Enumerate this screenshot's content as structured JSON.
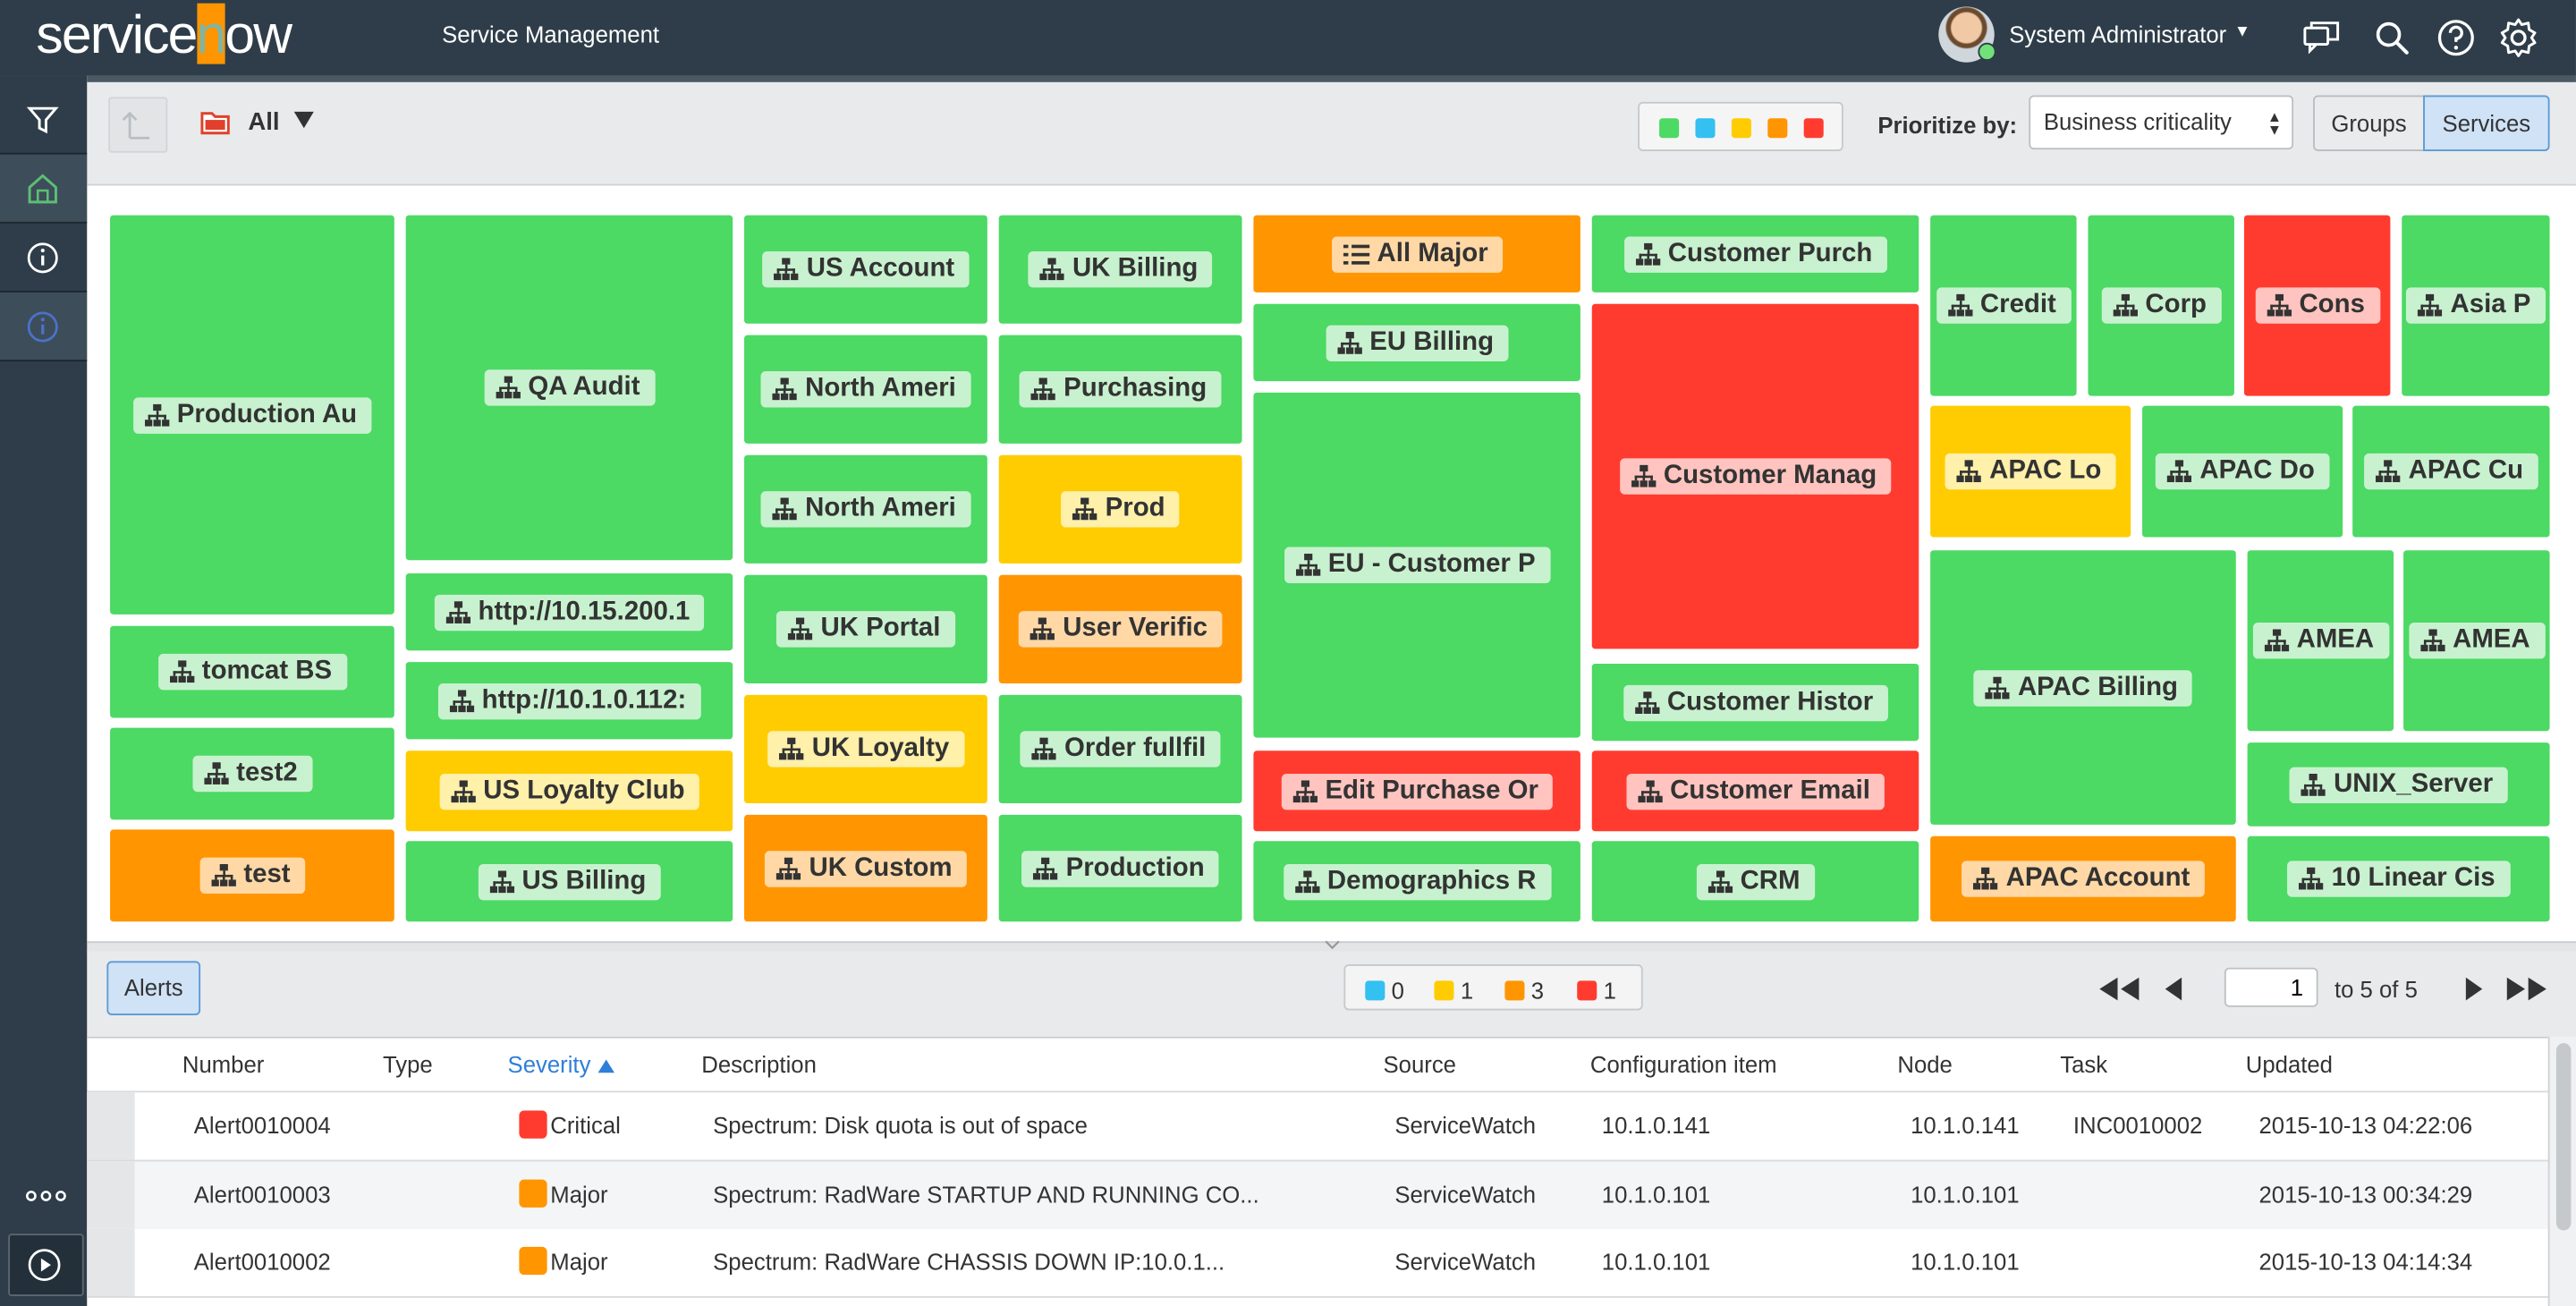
{
  "header": {
    "logo": "servicenow",
    "app_title": "Service Management",
    "user_name": "System Administrator"
  },
  "toolbar": {
    "filter_label": "All",
    "prioritize_label": "Prioritize by:",
    "prioritize_value": "Business criticality",
    "toggle_groups": "Groups",
    "toggle_services": "Services"
  },
  "colors": {
    "green": "#4cd964",
    "blue": "#34c0f0",
    "yellow": "#fecc00",
    "orange": "#ff9500",
    "red": "#ff3b30",
    "header_bg": "#2e3d49"
  },
  "treemap": {
    "tiles": [
      {
        "label": "Production Au",
        "status": "g",
        "icon": "service-icon"
      },
      {
        "label": "tomcat BS",
        "status": "g",
        "icon": "service-icon"
      },
      {
        "label": "test2",
        "status": "g",
        "icon": "service-icon"
      },
      {
        "label": "test",
        "status": "o",
        "icon": "service-icon"
      },
      {
        "label": "QA Audit",
        "status": "g",
        "icon": "service-icon"
      },
      {
        "label": "http://10.15.200.1",
        "status": "g",
        "icon": "service-icon"
      },
      {
        "label": "http://10.1.0.112:",
        "status": "g",
        "icon": "service-icon"
      },
      {
        "label": "US Loyalty Club",
        "status": "y",
        "icon": "service-icon"
      },
      {
        "label": "US Billing",
        "status": "g",
        "icon": "service-icon"
      },
      {
        "label": "US Account",
        "status": "g",
        "icon": "service-icon"
      },
      {
        "label": "North Ameri",
        "status": "g",
        "icon": "service-icon"
      },
      {
        "label": "North Ameri",
        "status": "g",
        "icon": "service-icon"
      },
      {
        "label": "UK Portal",
        "status": "g",
        "icon": "service-icon"
      },
      {
        "label": "UK Loyalty",
        "status": "y",
        "icon": "service-icon"
      },
      {
        "label": "UK Custom",
        "status": "o",
        "icon": "service-icon"
      },
      {
        "label": "UK Billing",
        "status": "g",
        "icon": "service-icon"
      },
      {
        "label": "Purchasing",
        "status": "g",
        "icon": "service-icon"
      },
      {
        "label": "Prod",
        "status": "y",
        "icon": "service-icon"
      },
      {
        "label": "User Verific",
        "status": "o",
        "icon": "service-icon"
      },
      {
        "label": "Order fullfil",
        "status": "g",
        "icon": "service-icon"
      },
      {
        "label": "Production",
        "status": "g",
        "icon": "service-icon"
      },
      {
        "label": "All Major",
        "status": "o",
        "icon": "list-icon"
      },
      {
        "label": "EU Billing",
        "status": "g",
        "icon": "service-icon"
      },
      {
        "label": "EU - Customer P",
        "status": "g",
        "icon": "service-icon"
      },
      {
        "label": "Edit Purchase Or",
        "status": "r",
        "icon": "service-icon"
      },
      {
        "label": "Demographics R",
        "status": "g",
        "icon": "service-icon"
      },
      {
        "label": "Customer Purch",
        "status": "g",
        "icon": "service-icon"
      },
      {
        "label": "Customer Manag",
        "status": "r",
        "icon": "service-icon"
      },
      {
        "label": "Customer Histor",
        "status": "g",
        "icon": "service-icon"
      },
      {
        "label": "Customer Email",
        "status": "r",
        "icon": "service-icon"
      },
      {
        "label": "CRM",
        "status": "g",
        "icon": "service-icon"
      },
      {
        "label": "Credit",
        "status": "g",
        "icon": "service-icon"
      },
      {
        "label": "Corp",
        "status": "g",
        "icon": "service-icon"
      },
      {
        "label": "Cons",
        "status": "r",
        "icon": "service-icon"
      },
      {
        "label": "Asia P",
        "status": "g",
        "icon": "service-icon"
      },
      {
        "label": "APAC Lo",
        "status": "y",
        "icon": "service-icon"
      },
      {
        "label": "APAC Do",
        "status": "g",
        "icon": "service-icon"
      },
      {
        "label": "APAC Cu",
        "status": "g",
        "icon": "service-icon"
      },
      {
        "label": "APAC Billing",
        "status": "g",
        "icon": "service-icon"
      },
      {
        "label": "APAC Account",
        "status": "o",
        "icon": "service-icon"
      },
      {
        "label": "AMEA",
        "status": "g",
        "icon": "service-icon"
      },
      {
        "label": "AMEA",
        "status": "g",
        "icon": "service-icon"
      },
      {
        "label": "UNIX_Server",
        "status": "g",
        "icon": "service-icon"
      },
      {
        "label": "10 Linear Cis",
        "status": "g",
        "icon": "service-icon"
      }
    ]
  },
  "alerts": {
    "tab_label": "Alerts",
    "counts": [
      "0",
      "1",
      "3",
      "1"
    ],
    "page_value": "1",
    "page_total": "to 5 of 5",
    "columns": [
      "Number",
      "Type",
      "Severity",
      "Description",
      "Source",
      "Configuration item",
      "Node",
      "Task",
      "Updated"
    ],
    "rows": [
      {
        "number": "Alert0010004",
        "type": "",
        "severity": "Critical",
        "severity_color": "#ff3b30",
        "description": "Spectrum: Disk quota is out of space",
        "source": "ServiceWatch",
        "ci": "10.1.0.141",
        "node": "10.1.0.141",
        "task": "INC0010002",
        "updated": "2015-10-13 04:22:06"
      },
      {
        "number": "Alert0010003",
        "type": "",
        "severity": "Major",
        "severity_color": "#ff9500",
        "description": "Spectrum: RadWare STARTUP AND RUNNING CO...",
        "source": "ServiceWatch",
        "ci": "10.1.0.101",
        "node": "10.1.0.101",
        "task": "",
        "updated": "2015-10-13 00:34:29"
      },
      {
        "number": "Alert0010002",
        "type": "",
        "severity": "Major",
        "severity_color": "#ff9500",
        "description": "Spectrum: RadWare CHASSIS DOWN IP:10.0.1...",
        "source": "ServiceWatch",
        "ci": "10.1.0.101",
        "node": "10.1.0.101",
        "task": "",
        "updated": "2015-10-13 04:14:34"
      }
    ]
  }
}
